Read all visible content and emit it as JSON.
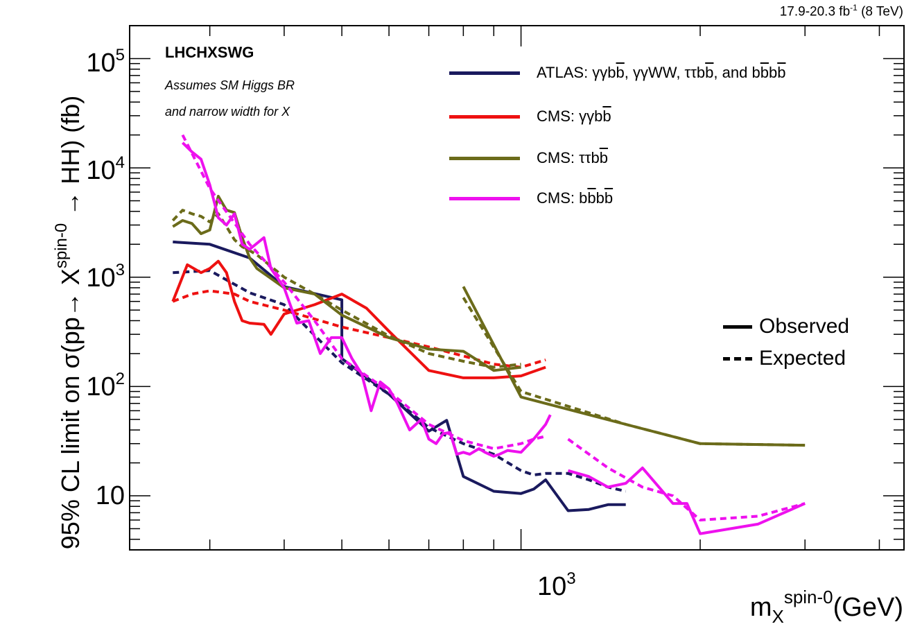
{
  "header": {
    "luminosity_main": "17.9-20.3 fb",
    "luminosity_exp": "-1",
    "luminosity_energy": " (8 TeV)"
  },
  "annotations": {
    "collaboration": "LHCHXSWG",
    "note_line1": "Assumes SM Higgs BR",
    "note_line2": "and narrow width for X"
  },
  "legend": {
    "atlas": {
      "prefix": "ATLAS: γγb",
      "bbar1": "b",
      "mid": ", γγWW, ττb",
      "bbar2": "b",
      "and": ", and b",
      "bbar3": "b",
      "b": "b",
      "bbar4": "b"
    },
    "cms_gg": {
      "prefix": "CMS: γγb",
      "bbar": "b"
    },
    "cms_tt": {
      "prefix": "CMS: ττb",
      "bbar": "b"
    },
    "cms_bb": {
      "b1": "CMS: b",
      "bbar1": "b",
      "b2": "b",
      "bbar2": "b"
    },
    "observed": "Observed",
    "expected": "Expected"
  },
  "axes": {
    "y_label_main": "95% CL limit on σ(pp→ X",
    "y_label_sup": "spin-0",
    "y_label_end": " → HH) (fb)",
    "x_label_main": "m",
    "x_label_sup": "spin-0",
    "x_label_sub": "X",
    "x_label_end": "(GeV)",
    "y_ticks": [
      {
        "base": "10",
        "exp": "5",
        "value": 100000
      },
      {
        "base": "10",
        "exp": "4",
        "value": 10000
      },
      {
        "base": "10",
        "exp": "3",
        "value": 1000
      },
      {
        "base": "10",
        "exp": "2",
        "value": 100
      },
      {
        "base": "10",
        "exp": "",
        "value": 10
      }
    ],
    "x_tick": {
      "base": "10",
      "exp": "3",
      "value": 1000
    }
  },
  "colors": {
    "atlas": "#1a1a5e",
    "cms_gg": "#ee1111",
    "cms_tt": "#6b6b1a",
    "cms_bb": "#ee11ee",
    "frame": "#000000"
  },
  "chart_data": {
    "type": "line",
    "x_scale": "log",
    "y_scale": "log",
    "xlim": [
      220,
      4400
    ],
    "ylim": [
      3.2,
      200000
    ],
    "grid": false,
    "legend_position": "top-right",
    "series": [
      {
        "name": "ATLAS: γγbb̄, γγWW, ττbb̄, and bb̄bb̄",
        "style": "observed",
        "color_key": "atlas",
        "x": [
          260,
          300,
          350,
          400,
          500,
          500,
          600,
          700,
          750,
          800,
          900,
          1000,
          1050,
          1100,
          1200,
          1300,
          1400,
          1500
        ],
        "y": [
          2100,
          2000,
          1500,
          820,
          620,
          180,
          85,
          39,
          49,
          15,
          11,
          10.5,
          11.5,
          14,
          7.3,
          7.5,
          8.3,
          8.3
        ]
      },
      {
        "name": "ATLAS: γγbb̄, γγWW, ττbb̄, and bb̄bb̄",
        "style": "expected",
        "color_key": "atlas",
        "x": [
          260,
          300,
          350,
          400,
          500,
          600,
          700,
          800,
          900,
          1000,
          1050,
          1100,
          1200,
          1300,
          1400,
          1500
        ],
        "y": [
          1100,
          1150,
          720,
          560,
          165,
          85,
          42,
          30,
          24,
          17,
          15.5,
          16,
          16,
          14,
          12,
          11
        ]
      },
      {
        "name": "CMS: γγbb̄",
        "style": "observed",
        "color_key": "cms_gg",
        "x": [
          260,
          275,
          290,
          300,
          310,
          320,
          330,
          340,
          350,
          370,
          380,
          400,
          450,
          500,
          550,
          600,
          700,
          800,
          900,
          1000,
          1100
        ],
        "y": [
          600,
          1300,
          1100,
          1200,
          1400,
          1100,
          600,
          400,
          380,
          370,
          300,
          460,
          560,
          700,
          520,
          320,
          140,
          120,
          120,
          125,
          150
        ]
      },
      {
        "name": "CMS: γγbb̄",
        "style": "expected",
        "color_key": "cms_gg",
        "x": [
          260,
          280,
          300,
          330,
          350,
          400,
          500,
          600,
          700,
          800,
          900,
          1000,
          1100
        ],
        "y": [
          600,
          700,
          750,
          700,
          600,
          500,
          350,
          280,
          230,
          190,
          160,
          150,
          175
        ]
      },
      {
        "name": "CMS: ττbb̄",
        "style": "observed",
        "color_key": "cms_tt",
        "x": [
          260,
          270,
          280,
          290,
          300,
          310,
          320,
          330,
          340,
          350,
          360,
          400,
          450,
          500,
          600,
          700,
          800,
          900,
          1000
        ],
        "y": [
          2900,
          3300,
          3100,
          2500,
          2700,
          5500,
          4100,
          3900,
          2300,
          1500,
          1200,
          800,
          700,
          450,
          280,
          220,
          210,
          140,
          150
        ]
      },
      {
        "name": "CMS: ττbb̄",
        "style": "expected",
        "color_key": "cms_tt",
        "x": [
          260,
          270,
          280,
          290,
          300,
          310,
          320,
          330,
          340,
          350,
          360,
          400,
          450,
          500,
          600,
          700,
          800,
          900,
          1000
        ],
        "y": [
          3300,
          4100,
          3800,
          3600,
          3200,
          3800,
          2900,
          2200,
          1900,
          1750,
          1600,
          1000,
          700,
          500,
          290,
          200,
          170,
          150,
          160
        ]
      },
      {
        "name": "CMS: ττbb̄",
        "style": "observed",
        "color_key": "cms_tt",
        "x": [
          800,
          1000,
          1500,
          2000,
          3000
        ],
        "y": [
          820,
          80,
          45,
          30,
          29
        ]
      },
      {
        "name": "CMS: ττbb̄",
        "style": "expected",
        "color_key": "cms_tt",
        "x": [
          800,
          1000,
          1500,
          2000,
          3000
        ],
        "y": [
          650,
          90,
          45,
          30,
          29
        ]
      },
      {
        "name": "CMS: bb̄bb̄",
        "style": "observed",
        "color_key": "cms_bb",
        "x": [
          270,
          280,
          290,
          300,
          310,
          320,
          330,
          340,
          350,
          370,
          380,
          400,
          420,
          440,
          460,
          480,
          500,
          520,
          540,
          560,
          580,
          600,
          620,
          650,
          680,
          700,
          720,
          740,
          760,
          780,
          800,
          820,
          850,
          870,
          900,
          920,
          950,
          1000,
          1050,
          1100,
          1120
        ],
        "y": [
          17000,
          14000,
          12000,
          7000,
          3500,
          3000,
          3800,
          2000,
          1800,
          2300,
          1200,
          800,
          380,
          400,
          200,
          280,
          280,
          180,
          130,
          60,
          110,
          95,
          70,
          40,
          50,
          33,
          30,
          37,
          38,
          24,
          25,
          24,
          27,
          25,
          23,
          24,
          26,
          25,
          33,
          45,
          55
        ]
      },
      {
        "name": "CMS: bb̄bb̄",
        "style": "observed",
        "color_key": "cms_bb",
        "x": [
          1200,
          1300,
          1400,
          1500,
          1600,
          1800,
          1900,
          2000,
          2500,
          3000
        ],
        "y": [
          17,
          15,
          12,
          13,
          18,
          8.5,
          8.5,
          4.5,
          5.5,
          8.5
        ]
      },
      {
        "name": "CMS: bb̄bb̄",
        "style": "expected",
        "color_key": "cms_bb",
        "x": [
          270,
          300,
          350,
          400,
          450,
          500,
          600,
          700,
          800,
          900,
          1000,
          1050,
          1100
        ],
        "y": [
          20000,
          6500,
          2000,
          900,
          400,
          180,
          90,
          45,
          32,
          27,
          30,
          33,
          35
        ]
      },
      {
        "name": "CMS: bb̄bb̄",
        "style": "expected",
        "color_key": "cms_bb",
        "x": [
          1200,
          1400,
          1600,
          1800,
          2000,
          2500,
          3000
        ],
        "y": [
          33,
          18,
          12,
          10,
          6,
          6.5,
          8.5
        ]
      }
    ]
  }
}
